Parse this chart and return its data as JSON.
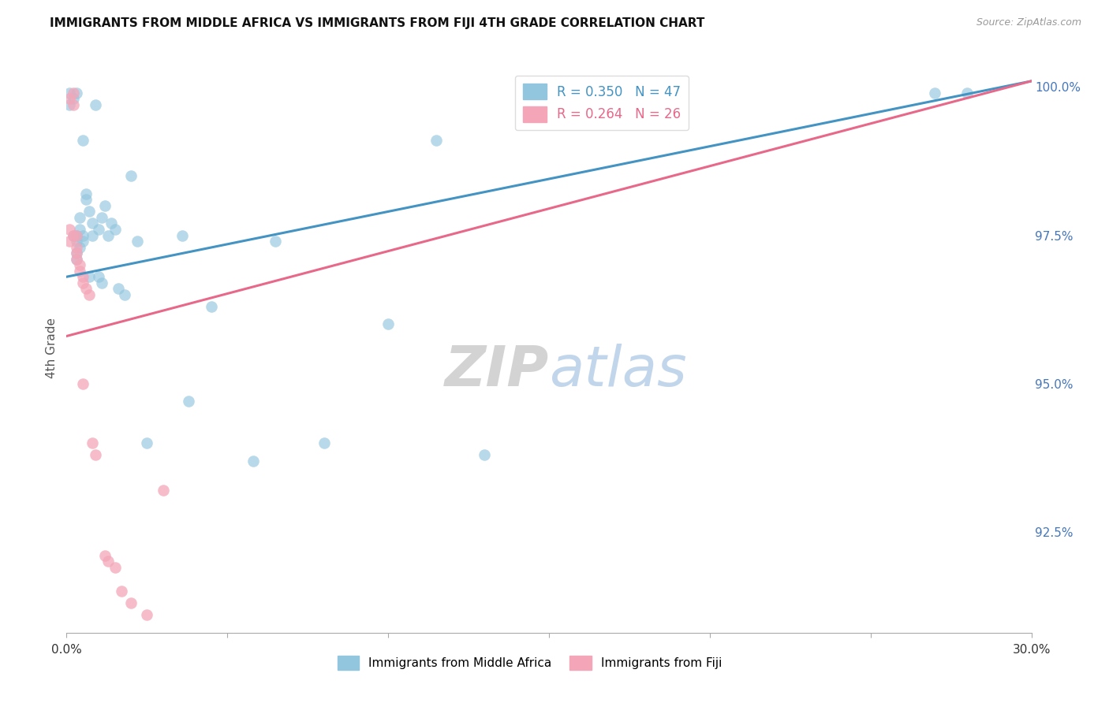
{
  "title": "IMMIGRANTS FROM MIDDLE AFRICA VS IMMIGRANTS FROM FIJI 4TH GRADE CORRELATION CHART",
  "source": "Source: ZipAtlas.com",
  "xlabel": "",
  "ylabel": "4th Grade",
  "xlim": [
    0.0,
    0.3
  ],
  "ylim": [
    0.908,
    1.004
  ],
  "yticks": [
    0.925,
    0.95,
    0.975,
    1.0
  ],
  "ytick_labels": [
    "92.5%",
    "95.0%",
    "97.5%",
    "100.0%"
  ],
  "xticks": [
    0.0,
    0.05,
    0.1,
    0.15,
    0.2,
    0.25,
    0.3
  ],
  "xtick_labels": [
    "0.0%",
    "",
    "",
    "",
    "",
    "",
    "30.0%"
  ],
  "legend1_label": "R = 0.350   N = 47",
  "legend2_label": "R = 0.264   N = 26",
  "blue_color": "#92c5de",
  "pink_color": "#f4a6b8",
  "blue_line_color": "#4393c3",
  "pink_line_color": "#e8688a",
  "watermark_zip": "ZIP",
  "watermark_atlas": "atlas",
  "blue_scatter_x": [
    0.001,
    0.001,
    0.002,
    0.002,
    0.003,
    0.003,
    0.003,
    0.003,
    0.003,
    0.004,
    0.004,
    0.004,
    0.005,
    0.005,
    0.005,
    0.006,
    0.006,
    0.007,
    0.007,
    0.008,
    0.008,
    0.009,
    0.01,
    0.01,
    0.011,
    0.011,
    0.012,
    0.013,
    0.014,
    0.015,
    0.016,
    0.018,
    0.02,
    0.022,
    0.025,
    0.036,
    0.038,
    0.045,
    0.058,
    0.065,
    0.08,
    0.1,
    0.115,
    0.13,
    0.175,
    0.27,
    0.28
  ],
  "blue_scatter_y": [
    0.999,
    0.997,
    0.998,
    0.975,
    0.999,
    0.975,
    0.974,
    0.972,
    0.971,
    0.978,
    0.976,
    0.973,
    0.991,
    0.975,
    0.974,
    0.982,
    0.981,
    0.979,
    0.968,
    0.977,
    0.975,
    0.997,
    0.976,
    0.968,
    0.978,
    0.967,
    0.98,
    0.975,
    0.977,
    0.976,
    0.966,
    0.965,
    0.985,
    0.974,
    0.94,
    0.975,
    0.947,
    0.963,
    0.937,
    0.974,
    0.94,
    0.96,
    0.991,
    0.938,
    0.999,
    0.999,
    0.999
  ],
  "pink_scatter_x": [
    0.001,
    0.001,
    0.001,
    0.002,
    0.002,
    0.002,
    0.003,
    0.003,
    0.003,
    0.003,
    0.004,
    0.004,
    0.005,
    0.005,
    0.005,
    0.006,
    0.007,
    0.008,
    0.009,
    0.012,
    0.013,
    0.015,
    0.017,
    0.02,
    0.025,
    0.03
  ],
  "pink_scatter_y": [
    0.998,
    0.976,
    0.974,
    0.999,
    0.997,
    0.975,
    0.975,
    0.973,
    0.972,
    0.971,
    0.97,
    0.969,
    0.968,
    0.967,
    0.95,
    0.966,
    0.965,
    0.94,
    0.938,
    0.921,
    0.92,
    0.919,
    0.915,
    0.913,
    0.911,
    0.932
  ],
  "blue_line_x": [
    0.0,
    0.3
  ],
  "blue_line_y": [
    0.968,
    1.001
  ],
  "pink_line_x": [
    0.0,
    0.3
  ],
  "pink_line_y": [
    0.958,
    1.001
  ]
}
